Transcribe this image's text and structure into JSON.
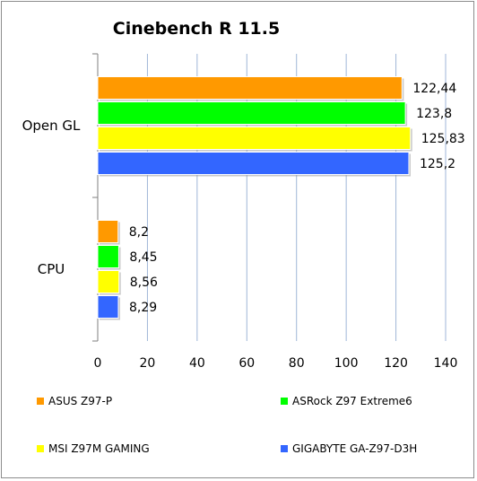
{
  "chart_data": {
    "type": "bar",
    "orientation": "horizontal",
    "title": "Cinebench R 11.5",
    "xlabel": "",
    "ylabel": "",
    "categories": [
      "Open GL",
      "CPU"
    ],
    "series": [
      {
        "name": "ASUS Z97-P",
        "color": "#ff9900",
        "values": [
          122.44,
          8.2
        ],
        "labels": [
          "122,44",
          "8,2"
        ]
      },
      {
        "name": "ASRock Z97 Extreme6",
        "color": "#00ff00",
        "values": [
          123.8,
          8.45
        ],
        "labels": [
          "123,8",
          "8,45"
        ]
      },
      {
        "name": "MSI Z97M GAMING",
        "color": "#ffff00",
        "values": [
          125.83,
          8.56
        ],
        "labels": [
          "125,83",
          "8,56"
        ]
      },
      {
        "name": "GIGABYTE GA-Z97-D3H",
        "color": "#3366ff",
        "values": [
          125.2,
          8.29
        ],
        "labels": [
          "125,2",
          "8,29"
        ]
      }
    ],
    "xlim": [
      0,
      140
    ],
    "xticks": [
      0,
      20,
      40,
      60,
      80,
      100,
      120,
      140
    ],
    "grid": true,
    "legend_position": "bottom"
  }
}
